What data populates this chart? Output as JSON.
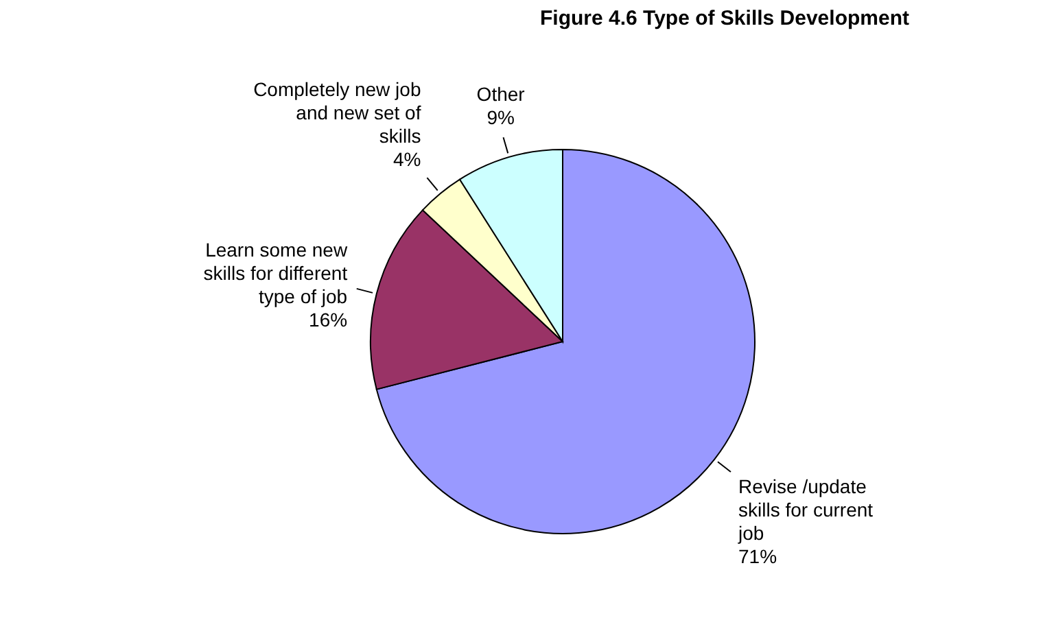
{
  "chart_data": {
    "type": "pie",
    "title": "Figure 4.6  Type of Skills Development",
    "categories": [
      "Revise /update skills for current job",
      "Learn some new skills for different type of job",
      "Completely new job and new set of skills",
      "Other"
    ],
    "values": [
      71,
      16,
      4,
      9
    ],
    "value_labels": [
      "71%",
      "16%",
      "4%",
      "9%"
    ],
    "colors": [
      "#9999ff",
      "#993366",
      "#ffffcc",
      "#ccffff"
    ]
  }
}
